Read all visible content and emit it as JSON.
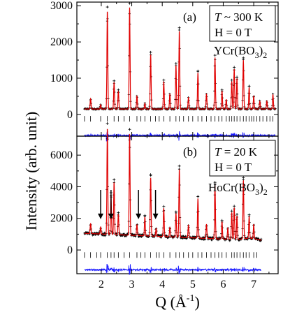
{
  "chart_data": [
    {
      "type": "line",
      "panel_label": "(a)",
      "annotation": {
        "temperature": {
          "symbol": "T",
          "relation": " ~ 300 K"
        },
        "field": "H = 0 T",
        "compound": {
          "pre": "YCr(BO",
          "sub1": "3",
          "mid": ")",
          "sub2": "2"
        }
      },
      "xlim": [
        1.2,
        7.8
      ],
      "ylim": [
        -600,
        3100
      ],
      "yticks": [
        0,
        1000,
        2000,
        3000
      ],
      "ytick_labels": [
        "0",
        "1000",
        "2000",
        "3000"
      ],
      "background": 150,
      "peaks": [
        [
          1.65,
          280
        ],
        [
          1.98,
          120
        ],
        [
          2.2,
          2700
        ],
        [
          2.42,
          740
        ],
        [
          2.56,
          500
        ],
        [
          2.93,
          2800
        ],
        [
          3.17,
          370
        ],
        [
          3.43,
          160
        ],
        [
          3.62,
          1500
        ],
        [
          4.05,
          760
        ],
        [
          4.25,
          420
        ],
        [
          4.45,
          1200
        ],
        [
          4.56,
          2150
        ],
        [
          4.86,
          320
        ],
        [
          5.17,
          1000
        ],
        [
          5.45,
          420
        ],
        [
          5.73,
          1420
        ],
        [
          5.96,
          500
        ],
        [
          6.1,
          260
        ],
        [
          6.28,
          760
        ],
        [
          6.36,
          1100
        ],
        [
          6.45,
          840
        ],
        [
          6.66,
          1350
        ],
        [
          6.85,
          600
        ],
        [
          7.0,
          360
        ],
        [
          7.2,
          220
        ],
        [
          7.43,
          220
        ],
        [
          7.63,
          400
        ]
      ],
      "bragg_ticks": [
        1.45,
        1.65,
        1.98,
        2.2,
        2.42,
        2.56,
        2.75,
        2.93,
        3.17,
        3.3,
        3.43,
        3.62,
        3.78,
        3.9,
        4.05,
        4.25,
        4.45,
        4.56,
        4.7,
        4.86,
        5.0,
        5.17,
        5.3,
        5.45,
        5.6,
        5.73,
        5.85,
        5.96,
        6.1,
        6.2,
        6.28,
        6.36,
        6.45,
        6.55,
        6.66,
        6.75,
        6.85,
        6.93,
        7.0,
        7.1,
        7.2,
        7.3,
        7.43,
        7.53,
        7.63
      ],
      "bragg_tick_level": -120,
      "difference_level": -580
    },
    {
      "type": "line",
      "panel_label": "(b)",
      "annotation": {
        "temperature": {
          "symbol": "T",
          "relation": " = 20 K"
        },
        "field": "H = 0 T",
        "compound": {
          "pre": "HoCr(BO",
          "sub1": "3",
          "mid": ")",
          "sub2": "2"
        }
      },
      "xlim": [
        1.2,
        7.8
      ],
      "ylim": [
        -1500,
        7200
      ],
      "yticks": [
        0,
        2000,
        4000,
        6000
      ],
      "ytick_labels": [
        "0",
        "2000",
        "4000",
        "6000"
      ],
      "background": 1050,
      "peaks": [
        [
          1.65,
          650
        ],
        [
          1.98,
          450
        ],
        [
          2.2,
          6700
        ],
        [
          2.32,
          2500
        ],
        [
          2.42,
          3300
        ],
        [
          2.56,
          1300
        ],
        [
          2.93,
          6400
        ],
        [
          3.17,
          700
        ],
        [
          3.43,
          1200
        ],
        [
          3.62,
          3700
        ],
        [
          3.8,
          500
        ],
        [
          4.05,
          1800
        ],
        [
          4.25,
          600
        ],
        [
          4.45,
          1500
        ],
        [
          4.56,
          4300
        ],
        [
          4.86,
          800
        ],
        [
          5.17,
          2500
        ],
        [
          5.45,
          900
        ],
        [
          5.73,
          3400
        ],
        [
          5.96,
          1100
        ],
        [
          6.15,
          700
        ],
        [
          6.28,
          1700
        ],
        [
          6.36,
          2000
        ],
        [
          6.45,
          1500
        ],
        [
          6.66,
          3700
        ],
        [
          6.85,
          1400
        ],
        [
          7.0,
          900
        ]
      ],
      "bragg_ticks": [
        1.45,
        1.65,
        1.85,
        1.98,
        2.2,
        2.32,
        2.42,
        2.56,
        2.75,
        2.93,
        3.17,
        3.3,
        3.43,
        3.62,
        3.8,
        3.9,
        4.05,
        4.25,
        4.45,
        4.56,
        4.7,
        4.86,
        5.0,
        5.17,
        5.3,
        5.45,
        5.6,
        5.73,
        5.85,
        5.96,
        6.1,
        6.28,
        6.36,
        6.45,
        6.55,
        6.66,
        6.75,
        6.85,
        7.0,
        7.1
      ],
      "bragg_tick_level": -320,
      "difference_level": -1250,
      "arrows_q": [
        1.98,
        2.32,
        3.22,
        3.78
      ]
    }
  ],
  "shared_x": {
    "xticks": [
      2,
      3,
      4,
      5,
      6,
      7
    ],
    "xtick_labels": [
      "2",
      "3",
      "4",
      "5",
      "6",
      "7"
    ],
    "xlabel": {
      "main": "Q (Å",
      "sup": "-1",
      "close": ")"
    }
  },
  "ylabel": "Intensity (arb. unit)",
  "colors": {
    "observed": "#000000",
    "calculated": "#e00000",
    "difference": "#1a1aff",
    "bragg": "#000000"
  }
}
